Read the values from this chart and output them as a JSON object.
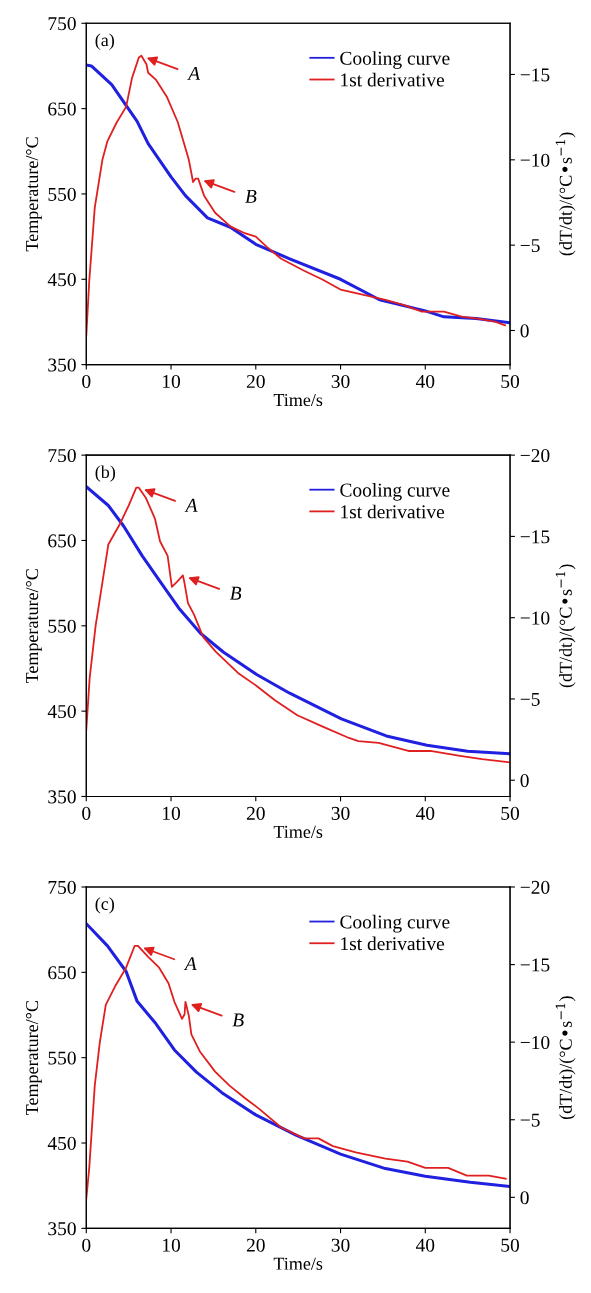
{
  "chart_data": [
    {
      "type": "line",
      "xlabel": "Time/s",
      "ylabel": "Temperature/°C",
      "y2label": "(dT/dt)/(°C•s$^{−1}$)",
      "xlim": [
        0,
        50
      ],
      "xticks": [
        0,
        10,
        20,
        30,
        40,
        50
      ],
      "ylim": [
        350,
        750
      ],
      "yticks": [
        350,
        450,
        550,
        650,
        750
      ],
      "y2lim": [
        2,
        -18
      ],
      "y2ticks": [
        {
          "value": 0,
          "label": "0"
        },
        {
          "value": -5,
          "label": "−5"
        },
        {
          "value": -10,
          "label": "−10"
        },
        {
          "value": -15,
          "label": "−15"
        }
      ],
      "legend": "top right",
      "grid": false,
      "annotations": [
        "(a)",
        {
          "text": "A",
          "x": 6.5,
          "y": 712
        },
        {
          "text": "B",
          "x": 13.2,
          "y": 568
        }
      ],
      "series": [
        {
          "name": "Cooling curve",
          "color": "#2020e0",
          "x": [
            0,
            0.6,
            3,
            6,
            7.3,
            10,
            11.7,
            14.3,
            17,
            20,
            24,
            30,
            34.6,
            40,
            42.2,
            46,
            50
          ],
          "values": [
            701,
            700,
            678,
            635,
            609,
            570,
            548,
            522,
            511,
            491,
            474,
            450,
            426,
            413,
            406,
            404,
            399
          ]
        },
        {
          "name": "1st derivative",
          "color": "#e02020",
          "axis": "y2",
          "x": [
            0,
            0.35,
            1,
            1.9,
            2.5,
            3.6,
            4.7,
            5.4,
            6.2,
            6.5,
            7.1,
            7.3,
            8.2,
            9.5,
            10.8,
            12.1,
            12.6,
            12.9,
            13.2,
            13.9,
            15.2,
            17,
            18.7,
            20,
            21.3,
            23,
            25.7,
            27.8,
            30,
            32.6,
            35.3,
            37.4,
            39.6,
            42.2,
            44.4,
            46.2,
            48.3,
            49.4
          ],
          "values": [
            0.3,
            -2.9,
            -7.2,
            -10.0,
            -11.1,
            -12.2,
            -13.1,
            -14.8,
            -16.0,
            -16.1,
            -15.6,
            -15.1,
            -14.7,
            -13.7,
            -12.2,
            -10.0,
            -8.7,
            -8.9,
            -8.9,
            -7.9,
            -6.9,
            -6.1,
            -5.7,
            -5.5,
            -4.9,
            -4.2,
            -3.5,
            -3.0,
            -2.4,
            -2.1,
            -1.8,
            -1.5,
            -1.1,
            -1.1,
            -0.8,
            -0.7,
            -0.5,
            -0.3
          ]
        }
      ]
    },
    {
      "type": "line",
      "xlabel": "Time/s",
      "ylabel": "Temperature/°C",
      "y2label": "(dT/dt)/(°C•s$^{−1}$)",
      "xlim": [
        0,
        50
      ],
      "xticks": [
        0,
        10,
        20,
        30,
        40,
        50
      ],
      "ylim": [
        350,
        750
      ],
      "yticks": [
        350,
        450,
        550,
        650,
        750
      ],
      "y2lim": [
        1,
        -20
      ],
      "y2ticks": [
        {
          "value": 0,
          "label": "0"
        },
        {
          "value": -5,
          "label": "−5"
        },
        {
          "value": -10,
          "label": "−10"
        },
        {
          "value": -15,
          "label": "−15"
        },
        {
          "value": -20,
          "label": "−20"
        }
      ],
      "legend": "top right",
      "grid": false,
      "annotations": [
        "(b)",
        {
          "text": "A",
          "x": 6.2,
          "y": 712
        },
        {
          "text": "B",
          "x": 11.4,
          "y": 609
        }
      ],
      "series": [
        {
          "name": "Cooling curve",
          "color": "#2020e0",
          "x": [
            0,
            2.6,
            4.4,
            6.6,
            8.7,
            10.9,
            13.5,
            16.2,
            20.1,
            24,
            30.1,
            35.4,
            40.2,
            45,
            50
          ],
          "values": [
            713,
            691,
            667,
            632,
            602,
            571,
            541,
            519,
            493,
            471,
            441,
            421,
            410,
            403,
            400
          ]
        },
        {
          "name": "1st derivative",
          "color": "#e02020",
          "axis": "y2",
          "x": [
            0,
            0.4,
            1.1,
            1.7,
            2.6,
            3.9,
            5,
            5.9,
            6.2,
            7,
            8.1,
            8.7,
            9.6,
            10.1,
            10.7,
            11.4,
            11.6,
            12,
            12.7,
            13.8,
            15.3,
            17.9,
            20.1,
            22.3,
            24.9,
            27.9,
            31,
            32.1,
            34.5,
            38,
            40.6,
            44.1,
            46.7,
            50
          ],
          "values": [
            -3.1,
            -6.3,
            -9.5,
            -11.5,
            -14.5,
            -15.7,
            -16.9,
            -18.0,
            -18.0,
            -17.4,
            -16.1,
            -14.7,
            -13.8,
            -11.9,
            -12.2,
            -12.6,
            -12.1,
            -10.9,
            -10.2,
            -8.8,
            -7.9,
            -6.6,
            -5.8,
            -4.9,
            -4.0,
            -3.3,
            -2.6,
            -2.4,
            -2.3,
            -1.8,
            -1.8,
            -1.5,
            -1.3,
            -1.1
          ]
        }
      ]
    },
    {
      "type": "line",
      "xlabel": "Time/s",
      "ylabel": "Temperature/°C",
      "y2label": "(dT/dt)/(°C•s$^{−1}$)",
      "xlim": [
        0,
        50
      ],
      "xticks": [
        0,
        10,
        20,
        30,
        40,
        50
      ],
      "ylim": [
        350,
        750
      ],
      "yticks": [
        350,
        450,
        550,
        650,
        750
      ],
      "y2lim": [
        2,
        -20
      ],
      "y2ticks": [
        {
          "value": 0,
          "label": "0"
        },
        {
          "value": -5,
          "label": "−5"
        },
        {
          "value": -10,
          "label": "−10"
        },
        {
          "value": -15,
          "label": "−15"
        },
        {
          "value": -20,
          "label": "−20"
        }
      ],
      "legend": "top right",
      "grid": false,
      "annotations": [
        "(c)",
        {
          "text": "A",
          "x": 6.1,
          "y": 681
        },
        {
          "text": "B",
          "x": 11.7,
          "y": 615
        }
      ],
      "series": [
        {
          "name": "Cooling curve",
          "color": "#2020e0",
          "x": [
            0,
            2.5,
            4.7,
            6,
            8.2,
            10.4,
            13,
            16,
            20,
            24.8,
            30,
            35.3,
            40,
            45.3,
            50
          ],
          "values": [
            707,
            681,
            651,
            616,
            590,
            559,
            533,
            509,
            483,
            459,
            437,
            420,
            411,
            404,
            399
          ]
        },
        {
          "name": "1st derivative",
          "color": "#e02020",
          "axis": "y2",
          "x": [
            0,
            0.35,
            1,
            1.6,
            2.3,
            3.4,
            4.7,
            5.7,
            6.1,
            7.3,
            8.6,
            9.7,
            10.4,
            11.3,
            11.6,
            11.7,
            12.1,
            12.4,
            13.4,
            15.2,
            16.9,
            18.7,
            20.4,
            23,
            25.7,
            27.4,
            29.1,
            31.8,
            35.3,
            37.9,
            40,
            42.7,
            44.9,
            47.5,
            49.5
          ],
          "values": [
            0.1,
            -1.9,
            -7.2,
            -10.0,
            -12.4,
            -13.6,
            -14.8,
            -16.2,
            -16.2,
            -15.5,
            -14.8,
            -13.8,
            -12.6,
            -11.5,
            -11.8,
            -12.6,
            -11.7,
            -10.5,
            -9.4,
            -8.1,
            -7.2,
            -6.4,
            -5.7,
            -4.5,
            -3.8,
            -3.8,
            -3.3,
            -2.9,
            -2.5,
            -2.3,
            -1.9,
            -1.9,
            -1.4,
            -1.4,
            -1.2
          ]
        }
      ]
    }
  ]
}
